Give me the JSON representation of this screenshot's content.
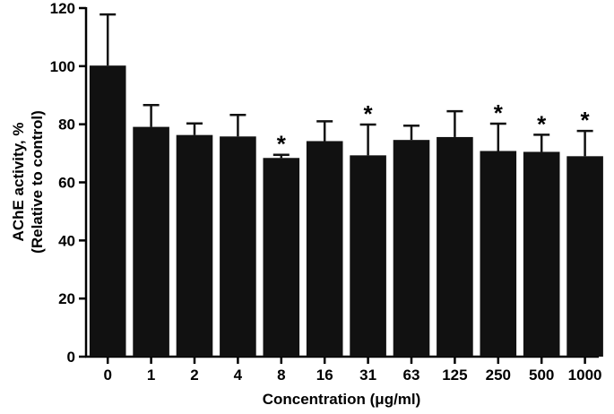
{
  "chart_data": {
    "type": "bar",
    "categories": [
      "0",
      "1",
      "2",
      "4",
      "8",
      "16",
      "31",
      "63",
      "125",
      "250",
      "500",
      "1000"
    ],
    "values": [
      100.2,
      79.1,
      76.3,
      75.8,
      68.4,
      74.2,
      69.3,
      74.6,
      75.6,
      70.8,
      70.5,
      69.0
    ],
    "error_upper": [
      117.8,
      86.6,
      80.3,
      83.2,
      69.5,
      81.0,
      79.9,
      79.5,
      84.5,
      80.2,
      76.4,
      77.7
    ],
    "significance": [
      "",
      "",
      "",
      "",
      "*",
      "",
      "*",
      "",
      "",
      "*",
      "*",
      "*"
    ],
    "xlabel": "Concentration (μg/ml)",
    "ylabel_line1": "AChE activity, %",
    "ylabel_line2": "(Relative to control)",
    "ylim": [
      0,
      120
    ],
    "yticks": [
      0,
      20,
      40,
      60,
      80,
      100,
      120
    ],
    "grid": false,
    "bar_color": "#111111"
  }
}
